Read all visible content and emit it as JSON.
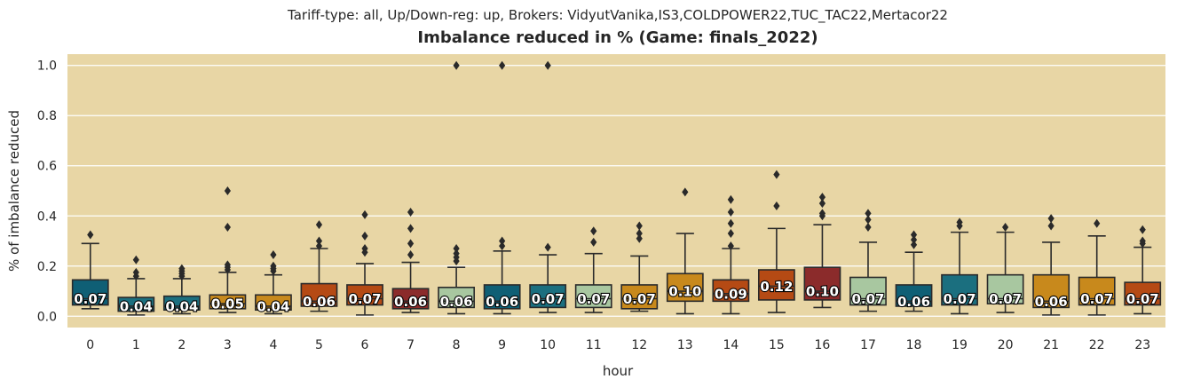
{
  "chart_data": {
    "type": "box",
    "subtitle": "Tariff-type: all, Up/Down-reg: up, Brokers: VidyutVanika,IS3,COLDPOWER22,TUC_TAC22,Mertacor22",
    "title": "Imbalance reduced in % (Game: finals_2022)",
    "xlabel": "hour",
    "ylabel": "% of imbalance reduced",
    "ylim": [
      -0.045,
      1.045
    ],
    "yticks": [
      "0.0",
      "0.2",
      "0.4",
      "0.6",
      "0.8",
      "1.0"
    ],
    "grid": true,
    "background_color": "#e8d6a5",
    "palette": [
      "#0f5f75",
      "#1b6f7f",
      "#c8891c",
      "#b54a14",
      "#8b2b2b",
      "#a8c7a0"
    ],
    "categories": [
      "0",
      "1",
      "2",
      "3",
      "4",
      "5",
      "6",
      "7",
      "8",
      "9",
      "10",
      "11",
      "12",
      "13",
      "14",
      "15",
      "16",
      "17",
      "18",
      "19",
      "20",
      "21",
      "22",
      "23"
    ],
    "boxes": [
      {
        "whislo": 0.03,
        "q1": 0.045,
        "med": 0.07,
        "q3": 0.145,
        "whishi": 0.29,
        "fliers": [
          0.325
        ],
        "label": "0.07",
        "color": "#0f5f75"
      },
      {
        "whislo": 0.005,
        "q1": 0.02,
        "med": 0.04,
        "q3": 0.075,
        "whishi": 0.15,
        "fliers": [
          0.16,
          0.175,
          0.225
        ],
        "label": "0.04",
        "color": "#1b6f7f"
      },
      {
        "whislo": 0.01,
        "q1": 0.025,
        "med": 0.04,
        "q3": 0.08,
        "whishi": 0.15,
        "fliers": [
          0.16,
          0.17,
          0.18,
          0.19
        ],
        "label": "0.04",
        "color": "#1b6f7f"
      },
      {
        "whislo": 0.015,
        "q1": 0.03,
        "med": 0.05,
        "q3": 0.085,
        "whishi": 0.175,
        "fliers": [
          0.185,
          0.195,
          0.205,
          0.355,
          0.5
        ],
        "label": "0.05",
        "color": "#c8891c"
      },
      {
        "whislo": 0.01,
        "q1": 0.025,
        "med": 0.04,
        "q3": 0.085,
        "whishi": 0.165,
        "fliers": [
          0.18,
          0.19,
          0.2,
          0.245
        ],
        "label": "0.04",
        "color": "#c8891c"
      },
      {
        "whislo": 0.02,
        "q1": 0.04,
        "med": 0.06,
        "q3": 0.13,
        "whishi": 0.27,
        "fliers": [
          0.28,
          0.3,
          0.365
        ],
        "label": "0.06",
        "color": "#b54a14"
      },
      {
        "whislo": 0.005,
        "q1": 0.045,
        "med": 0.07,
        "q3": 0.125,
        "whishi": 0.21,
        "fliers": [
          0.255,
          0.27,
          0.32,
          0.405
        ],
        "label": "0.07",
        "color": "#b54a14"
      },
      {
        "whislo": 0.015,
        "q1": 0.03,
        "med": 0.06,
        "q3": 0.11,
        "whishi": 0.215,
        "fliers": [
          0.245,
          0.29,
          0.35,
          0.415
        ],
        "label": "0.06",
        "color": "#8b2b2b"
      },
      {
        "whislo": 0.01,
        "q1": 0.035,
        "med": 0.06,
        "q3": 0.115,
        "whishi": 0.195,
        "fliers": [
          0.22,
          0.235,
          0.25,
          0.27,
          1.0
        ],
        "label": "0.06",
        "color": "#a8c7a0"
      },
      {
        "whislo": 0.01,
        "q1": 0.03,
        "med": 0.06,
        "q3": 0.125,
        "whishi": 0.26,
        "fliers": [
          0.28,
          0.3,
          1.0
        ],
        "label": "0.06",
        "color": "#0f5f75"
      },
      {
        "whislo": 0.015,
        "q1": 0.035,
        "med": 0.07,
        "q3": 0.125,
        "whishi": 0.245,
        "fliers": [
          0.275,
          1.0
        ],
        "label": "0.07",
        "color": "#1b6f7f"
      },
      {
        "whislo": 0.015,
        "q1": 0.035,
        "med": 0.07,
        "q3": 0.125,
        "whishi": 0.25,
        "fliers": [
          0.295,
          0.34
        ],
        "label": "0.07",
        "color": "#a8c7a0"
      },
      {
        "whislo": 0.02,
        "q1": 0.03,
        "med": 0.07,
        "q3": 0.125,
        "whishi": 0.24,
        "fliers": [
          0.31,
          0.33,
          0.36
        ],
        "label": "0.07",
        "color": "#c8891c"
      },
      {
        "whislo": 0.01,
        "q1": 0.06,
        "med": 0.1,
        "q3": 0.17,
        "whishi": 0.33,
        "fliers": [
          0.495
        ],
        "label": "0.10",
        "color": "#c8891c"
      },
      {
        "whislo": 0.01,
        "q1": 0.06,
        "med": 0.09,
        "q3": 0.145,
        "whishi": 0.27,
        "fliers": [
          0.28,
          0.33,
          0.37,
          0.415,
          0.465
        ],
        "label": "0.09",
        "color": "#b54a14"
      },
      {
        "whislo": 0.015,
        "q1": 0.065,
        "med": 0.12,
        "q3": 0.185,
        "whishi": 0.35,
        "fliers": [
          0.44,
          0.565
        ],
        "label": "0.12",
        "color": "#b54a14"
      },
      {
        "whislo": 0.035,
        "q1": 0.065,
        "med": 0.1,
        "q3": 0.195,
        "whishi": 0.365,
        "fliers": [
          0.4,
          0.41,
          0.45,
          0.475
        ],
        "label": "0.10",
        "color": "#8b2b2b"
      },
      {
        "whislo": 0.02,
        "q1": 0.045,
        "med": 0.07,
        "q3": 0.155,
        "whishi": 0.295,
        "fliers": [
          0.355,
          0.385,
          0.41
        ],
        "label": "0.07",
        "color": "#a8c7a0"
      },
      {
        "whislo": 0.02,
        "q1": 0.04,
        "med": 0.06,
        "q3": 0.125,
        "whishi": 0.255,
        "fliers": [
          0.285,
          0.305,
          0.325
        ],
        "label": "0.06",
        "color": "#0f5f75"
      },
      {
        "whislo": 0.01,
        "q1": 0.045,
        "med": 0.07,
        "q3": 0.165,
        "whishi": 0.335,
        "fliers": [
          0.36,
          0.375
        ],
        "label": "0.07",
        "color": "#1b6f7f"
      },
      {
        "whislo": 0.015,
        "q1": 0.05,
        "med": 0.07,
        "q3": 0.165,
        "whishi": 0.335,
        "fliers": [
          0.355
        ],
        "label": "0.07",
        "color": "#a8c7a0"
      },
      {
        "whislo": 0.005,
        "q1": 0.035,
        "med": 0.06,
        "q3": 0.165,
        "whishi": 0.295,
        "fliers": [
          0.36,
          0.39
        ],
        "label": "0.06",
        "color": "#c8891c"
      },
      {
        "whislo": 0.005,
        "q1": 0.045,
        "med": 0.07,
        "q3": 0.155,
        "whishi": 0.32,
        "fliers": [
          0.37
        ],
        "label": "0.07",
        "color": "#c8891c"
      },
      {
        "whislo": 0.01,
        "q1": 0.045,
        "med": 0.07,
        "q3": 0.135,
        "whishi": 0.275,
        "fliers": [
          0.29,
          0.3,
          0.345
        ],
        "label": "0.07",
        "color": "#b54a14"
      }
    ]
  }
}
